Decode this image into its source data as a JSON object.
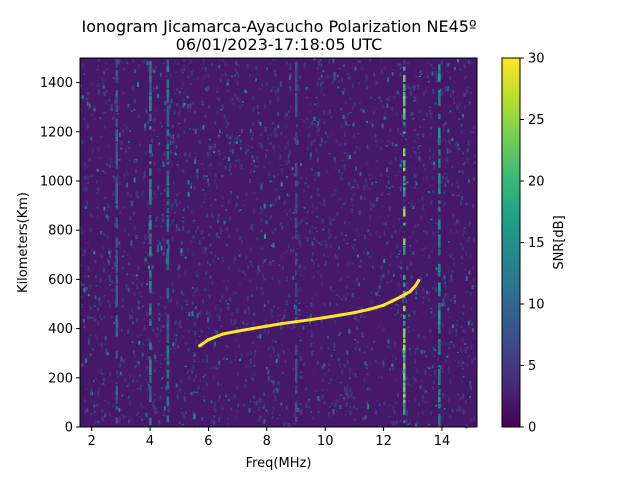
{
  "chart_data": {
    "type": "heatmap",
    "title": "Ionogram Jicamarca-Ayacucho Polarization NE45º",
    "subtitle": "06/01/2023-17:18:05 UTC",
    "xlabel": "Freq(MHz)",
    "ylabel": "Kilometers(Km)",
    "xlim": [
      1.6,
      15.2
    ],
    "ylim": [
      0,
      1500
    ],
    "xticks": [
      2,
      4,
      6,
      8,
      10,
      12,
      14
    ],
    "yticks": [
      0,
      200,
      400,
      600,
      800,
      1000,
      1200,
      1400
    ],
    "colorbar": {
      "label": "SNR[dB]",
      "range": [
        0,
        30
      ],
      "ticks": [
        0,
        5,
        10,
        15,
        20,
        25,
        30
      ],
      "colormap": [
        "#440154",
        "#482878",
        "#3e4989",
        "#31688e",
        "#26828e",
        "#1f9e89",
        "#35b779",
        "#6ece58",
        "#b5de2b",
        "#fde725"
      ]
    },
    "background_snr_db": 2,
    "trace": {
      "name": "",
      "snr_db": 30,
      "points": [
        {
          "x": 5.7,
          "y": 330
        },
        {
          "x": 6.0,
          "y": 355
        },
        {
          "x": 6.5,
          "y": 378
        },
        {
          "x": 7.0,
          "y": 390
        },
        {
          "x": 7.5,
          "y": 400
        },
        {
          "x": 8.0,
          "y": 410
        },
        {
          "x": 8.5,
          "y": 420
        },
        {
          "x": 9.0,
          "y": 428
        },
        {
          "x": 9.5,
          "y": 436
        },
        {
          "x": 10.0,
          "y": 445
        },
        {
          "x": 10.5,
          "y": 455
        },
        {
          "x": 11.0,
          "y": 465
        },
        {
          "x": 11.5,
          "y": 478
        },
        {
          "x": 12.0,
          "y": 495
        },
        {
          "x": 12.3,
          "y": 512
        },
        {
          "x": 12.6,
          "y": 530
        },
        {
          "x": 12.9,
          "y": 550
        },
        {
          "x": 13.1,
          "y": 575
        },
        {
          "x": 13.2,
          "y": 595
        }
      ]
    },
    "interference_lines": [
      {
        "x": 2.85,
        "snr_db": 10
      },
      {
        "x": 4.0,
        "snr_db": 14
      },
      {
        "x": 4.6,
        "snr_db": 12
      },
      {
        "x": 9.0,
        "snr_db": 8
      },
      {
        "x": 12.7,
        "snr_db": 24
      },
      {
        "x": 13.9,
        "snr_db": 16
      }
    ]
  }
}
